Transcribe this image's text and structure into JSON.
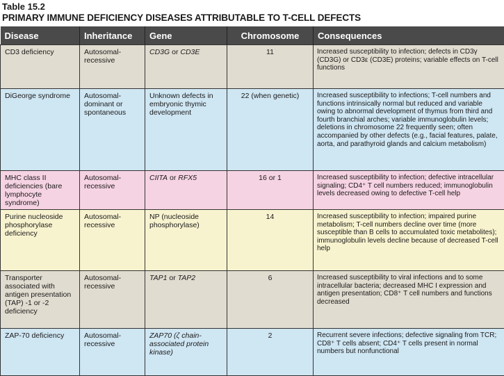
{
  "table_number": "Table 15.2",
  "title": "PRIMARY IMMUNE DEFICIENCY DISEASES ATTRIBUTABLE TO T-CELL DEFECTS",
  "headers": [
    "Disease",
    "Inheritance",
    "Gene",
    "Chromosome",
    "Consequences"
  ],
  "row_colors": [
    "#e1dcd0",
    "#cfe6f3",
    "#f6d3e2",
    "#f8f3cf",
    "#e1dcd0",
    "#cfe6f3"
  ],
  "header_color": "#4a4a4a",
  "rows": [
    {
      "disease": "CD3 deficiency",
      "inheritance": "Autosomal-recessive",
      "gene": "CD3G or CD3E",
      "chromosome": "11",
      "consequences": "Increased susceptibility to infection; defects in CD3γ (CD3G) or CD3ε (CD3E) proteins; variable effects on T-cell functions"
    },
    {
      "disease": "DiGeorge syndrome",
      "inheritance": "Autosomal-dominant or spontaneous",
      "gene": "Unknown defects in embryonic thymic development",
      "chromosome": "22 (when genetic)",
      "consequences": "Increased susceptibility to infections; T-cell numbers and functions intrinsically normal but reduced and variable owing to abnormal development of thymus from third and fourth branchial arches; variable immunoglobulin levels; deletions in chromosome 22 frequently seen; often accompanied by other defects (e.g., facial features, palate, aorta, and parathyroid glands and calcium metabolism)"
    },
    {
      "disease": "MHC class II deficiencies (bare lymphocyte syndrome)",
      "inheritance": "Autosomal-recessive",
      "gene": "CIITA or RFX5",
      "chromosome": "16 or 1",
      "consequences": "Increased susceptibility to infection; defective intracellular signaling; CD4⁺ T cell numbers reduced; immunoglobulin levels decreased owing to defective T-cell help"
    },
    {
      "disease": "Purine nucleoside phosphorylase deficiency",
      "inheritance": "Autosomal-recessive",
      "gene": "NP (nucleoside phosphorylase)",
      "chromosome": "14",
      "consequences": "Increased susceptibility to infection; impaired purine metabolism; T-cell numbers decline over time (more susceptible than B cells to accumulated toxic metabolites); immunoglobulin levels decline because of decreased T-cell help"
    },
    {
      "disease": "Transporter associated with antigen presentation (TAP) -1 or -2 deficiency",
      "inheritance": "Autosomal-recessive",
      "gene": "TAP1 or TAP2",
      "chromosome": "6",
      "consequences": "Increased susceptibility to viral infections and to some intracellular bacteria; decreased MHC I expression and antigen presentation; CD8⁺ T cell numbers and functions decreased"
    },
    {
      "disease": "ZAP-70 deficiency",
      "inheritance": "Autosomal-recessive",
      "gene": "ZAP70 (ζ chain-associated protein kinase)",
      "chromosome": "2",
      "consequences": "Recurrent severe infections; defective signaling from TCR; CD8⁺ T cells absent; CD4⁺ T cells present in normal numbers but nonfunctional"
    }
  ]
}
